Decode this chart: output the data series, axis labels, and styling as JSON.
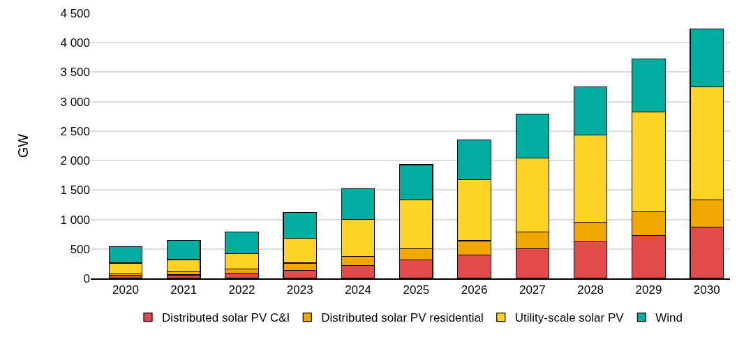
{
  "chart_data": {
    "type": "bar",
    "stacked": true,
    "ylabel": "GW",
    "categories": [
      "2020",
      "2021",
      "2022",
      "2023",
      "2024",
      "2025",
      "2026",
      "2027",
      "2028",
      "2029",
      "2030"
    ],
    "series": [
      {
        "name": "Distributed solar PV C&I",
        "color": "#e34b4b",
        "values": [
          50,
          60,
          90,
          140,
          220,
          310,
          400,
          500,
          620,
          730,
          870
        ]
      },
      {
        "name": "Distributed solar PV residential",
        "color": "#f0a800",
        "values": [
          30,
          50,
          70,
          120,
          150,
          190,
          240,
          290,
          330,
          400,
          460
        ]
      },
      {
        "name": "Utility-scale solar PV",
        "color": "#fdd325",
        "values": [
          180,
          210,
          260,
          420,
          630,
          830,
          1040,
          1250,
          1480,
          1690,
          1920
        ]
      },
      {
        "name": "Wind",
        "color": "#00ada0",
        "values": [
          280,
          330,
          370,
          440,
          520,
          600,
          670,
          750,
          820,
          900,
          980
        ]
      }
    ],
    "ylim": [
      0,
      4500
    ],
    "yticks": [
      0,
      {
        "value": 500,
        "label": "500"
      },
      {
        "value": 1000,
        "label": "1 000"
      },
      {
        "value": 1500,
        "label": "1 500"
      },
      {
        "value": 2000,
        "label": "2 000"
      },
      {
        "value": 2500,
        "label": "2 500"
      },
      {
        "value": 3000,
        "label": "3 000"
      },
      {
        "value": 3500,
        "label": "3 500"
      },
      {
        "value": 4000,
        "label": "4 000"
      },
      {
        "value": 4500,
        "label": "4 500"
      }
    ],
    "grid": "y",
    "legend": "bottom"
  }
}
